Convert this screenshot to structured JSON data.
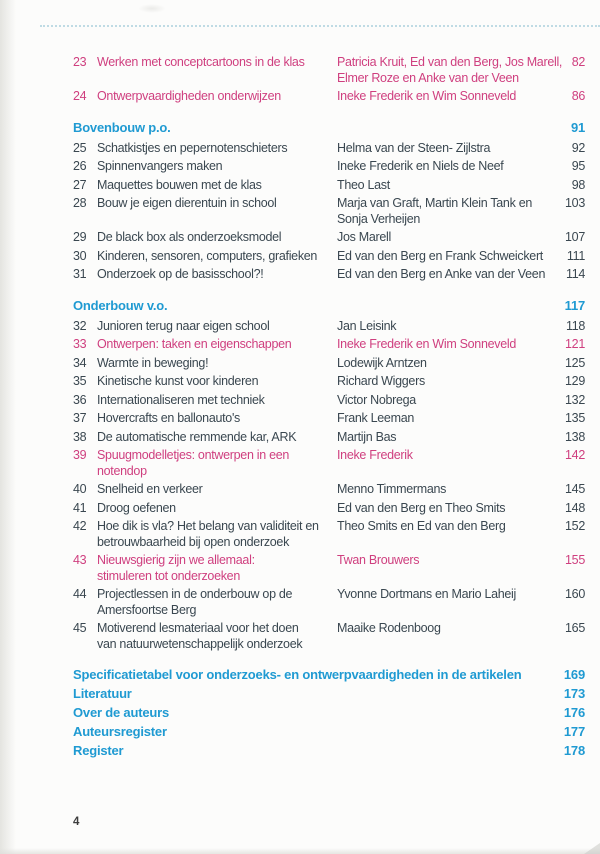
{
  "colors": {
    "accent_blue": "#1f9ad2",
    "accent_pink": "#cf3f7f",
    "text": "#3a4750"
  },
  "toc": {
    "groups": [
      {
        "header": null,
        "items": [
          {
            "num": "23",
            "title": "Werken met conceptcartoons in de klas",
            "authors": "Patricia Kruit, Ed van den Berg, Jos Marell,\nElmer Roze en Anke van der Veen",
            "page": "82",
            "accent": true
          },
          {
            "num": "24",
            "title": "Ontwerpvaardigheden onderwijzen",
            "authors": "Ineke Frederik en Wim Sonneveld",
            "page": "86",
            "accent": true
          }
        ]
      },
      {
        "header": {
          "label": "Bovenbouw p.o.",
          "page": "91"
        },
        "items": [
          {
            "num": "25",
            "title": "Schatkistjes en pepernotenschieters",
            "authors": "Helma van der Steen- Zijlstra",
            "page": "92",
            "accent": false
          },
          {
            "num": "26",
            "title": "Spinnenvangers maken",
            "authors": "Ineke Frederik en Niels de Neef",
            "page": "95",
            "accent": false
          },
          {
            "num": "27",
            "title": "Maquettes bouwen met de klas",
            "authors": "Theo Last",
            "page": "98",
            "accent": false
          },
          {
            "num": "28",
            "title": "Bouw je eigen dierentuin in school",
            "authors": "Marja van Graft, Martin Klein Tank en\nSonja Verheijen",
            "page": "103",
            "accent": false
          },
          {
            "num": "29",
            "title": "De black box als onderzoeksmodel",
            "authors": "Jos Marell",
            "page": "107",
            "accent": false
          },
          {
            "num": "30",
            "title": "Kinderen, sensoren, computers, grafieken",
            "authors": "Ed van den Berg en Frank Schweickert",
            "page": "111",
            "accent": false
          },
          {
            "num": "31",
            "title": "Onderzoek op de basisschool?!",
            "authors": "Ed van den Berg en Anke van der Veen",
            "page": "114",
            "accent": false
          }
        ]
      },
      {
        "header": {
          "label": "Onderbouw v.o.",
          "page": "117"
        },
        "items": [
          {
            "num": "32",
            "title": "Junioren terug naar eigen school",
            "authors": "Jan Leisink",
            "page": "118",
            "accent": false
          },
          {
            "num": "33",
            "title": "Ontwerpen: taken en eigenschappen",
            "authors": "Ineke Frederik en Wim Sonneveld",
            "page": "121",
            "accent": true
          },
          {
            "num": "34",
            "title": "Warmte in beweging!",
            "authors": "Lodewijk Arntzen",
            "page": "125",
            "accent": false
          },
          {
            "num": "35",
            "title": "Kinetische kunst voor kinderen",
            "authors": "Richard Wiggers",
            "page": "129",
            "accent": false
          },
          {
            "num": "36",
            "title": "Internationaliseren met techniek",
            "authors": "Victor Nobrega",
            "page": "132",
            "accent": false
          },
          {
            "num": "37",
            "title": "Hovercrafts en ballonauto's",
            "authors": "Frank Leeman",
            "page": "135",
            "accent": false
          },
          {
            "num": "38",
            "title": "De automatische remmende kar, ARK",
            "authors": "Martijn Bas",
            "page": "138",
            "accent": false
          },
          {
            "num": "39",
            "title": "Spuugmodelletjes: ontwerpen in een\nnotendop",
            "authors": "Ineke Frederik",
            "page": "142",
            "accent": true
          },
          {
            "num": "40",
            "title": "Snelheid en verkeer",
            "authors": "Menno Timmermans",
            "page": "145",
            "accent": false
          },
          {
            "num": "41",
            "title": "Droog oefenen",
            "authors": "Ed van den Berg en Theo Smits",
            "page": "148",
            "accent": false
          },
          {
            "num": "42",
            "title": "Hoe dik is vla? Het belang van validiteit en\nbetrouwbaarheid bij open onderzoek",
            "authors": "Theo Smits en Ed van den Berg",
            "page": "152",
            "accent": false
          },
          {
            "num": "43",
            "title": "Nieuwsgierig zijn we allemaal:\nstimuleren tot onderzoeken",
            "authors": "Twan Brouwers",
            "page": "155",
            "accent": true
          },
          {
            "num": "44",
            "title": "Projectlessen in de onderbouw op de\nAmersfoortse Berg",
            "authors": "Yvonne Dortmans en Mario Laheij",
            "page": "160",
            "accent": false
          },
          {
            "num": "45",
            "title": "Motiverend lesmateriaal voor het doen\nvan natuurwetenschappelijk onderzoek",
            "authors": "Maaike Rodenboog",
            "page": "165",
            "accent": false
          }
        ]
      }
    ],
    "back_matter": [
      {
        "label": "Specificatietabel voor onderzoeks- en ontwerpvaardigheden in de artikelen",
        "page": "169"
      },
      {
        "label": "Literatuur",
        "page": "173"
      },
      {
        "label": "Over de auteurs",
        "page": "176"
      },
      {
        "label": "Auteursregister",
        "page": "177"
      },
      {
        "label": "Register",
        "page": "178"
      }
    ]
  },
  "footer": {
    "page_number": "4"
  }
}
